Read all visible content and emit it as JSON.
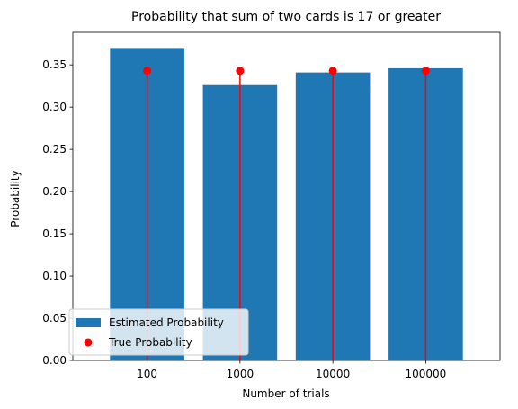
{
  "chart_data": {
    "type": "bar",
    "title": "Probability that sum of two cards is 17 or greater",
    "xlabel": "Number of trials",
    "ylabel": "Probability",
    "categories": [
      "100",
      "1000",
      "10000",
      "100000"
    ],
    "ylim": [
      0,
      0.3885
    ],
    "yticks": [
      "0.00",
      "0.05",
      "0.10",
      "0.15",
      "0.20",
      "0.25",
      "0.30",
      "0.35"
    ],
    "grid": false,
    "legend_position": "lower-left",
    "series": [
      {
        "name": "Estimated Probability",
        "type": "bar",
        "color": "#1f77b4",
        "values": [
          0.37,
          0.326,
          0.341,
          0.346
        ]
      },
      {
        "name": "True Probability",
        "type": "stem",
        "color": "#ff0000",
        "values": [
          0.343,
          0.343,
          0.343,
          0.343
        ]
      }
    ]
  }
}
